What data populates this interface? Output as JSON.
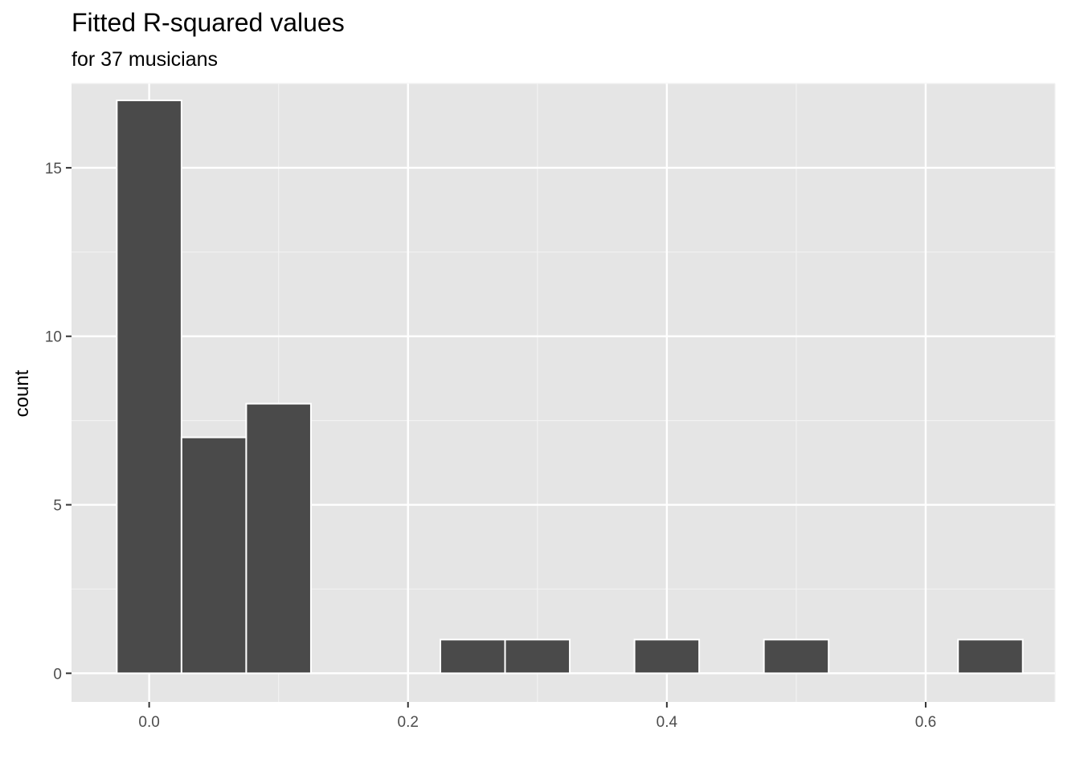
{
  "chart_data": {
    "type": "bar",
    "title": "Fitted R-squared values",
    "subtitle": "for 37 musicians",
    "xlabel": "",
    "ylabel": "count",
    "xlim": [
      -0.06,
      0.7
    ],
    "ylim": [
      -0.85,
      17.5
    ],
    "x_ticks": [
      0.0,
      0.2,
      0.4,
      0.6
    ],
    "x_tick_labels": [
      "0.0",
      "0.2",
      "0.4",
      "0.6"
    ],
    "y_ticks": [
      0,
      5,
      10,
      15
    ],
    "y_tick_labels": [
      "0",
      "5",
      "10",
      "15"
    ],
    "bin_width": 0.05,
    "bins": [
      {
        "start": -0.025,
        "end": 0.025,
        "count": 17
      },
      {
        "start": 0.025,
        "end": 0.075,
        "count": 7
      },
      {
        "start": 0.075,
        "end": 0.125,
        "count": 8
      },
      {
        "start": 0.125,
        "end": 0.175,
        "count": 0
      },
      {
        "start": 0.175,
        "end": 0.225,
        "count": 0
      },
      {
        "start": 0.225,
        "end": 0.275,
        "count": 1
      },
      {
        "start": 0.275,
        "end": 0.325,
        "count": 1
      },
      {
        "start": 0.325,
        "end": 0.375,
        "count": 0
      },
      {
        "start": 0.375,
        "end": 0.425,
        "count": 1
      },
      {
        "start": 0.425,
        "end": 0.475,
        "count": 0
      },
      {
        "start": 0.475,
        "end": 0.525,
        "count": 1
      },
      {
        "start": 0.525,
        "end": 0.575,
        "count": 0
      },
      {
        "start": 0.575,
        "end": 0.625,
        "count": 0
      },
      {
        "start": 0.625,
        "end": 0.675,
        "count": 1
      }
    ],
    "grid": true,
    "colors": {
      "panel_background": "#e5e5e5",
      "grid_major": "#ffffff",
      "grid_minor": "#f2f2f2",
      "bar_fill": "#4a4a4a",
      "bar_outline": "#ffffff",
      "tick_color": "#333333"
    }
  }
}
